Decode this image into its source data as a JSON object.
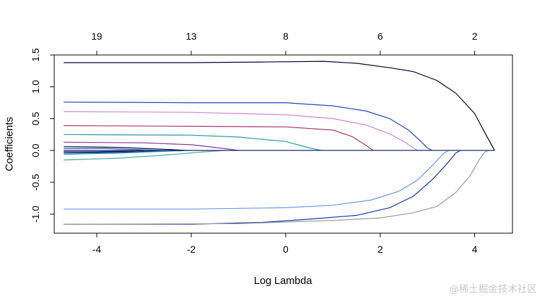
{
  "chart_data": {
    "type": "line",
    "xlabel": "Log Lambda",
    "ylabel": "Coefficients",
    "xlim": [
      -4.9,
      4.8
    ],
    "ylim": [
      -1.3,
      1.5
    ],
    "x_ticks": [
      -4,
      -2,
      0,
      2,
      4
    ],
    "x_tick_labels": [
      "-4",
      "-2",
      "0",
      "2",
      "4"
    ],
    "y_ticks": [
      -1.0,
      -0.5,
      0.0,
      0.5,
      1.0,
      1.5
    ],
    "y_tick_labels": [
      "-1.0",
      "-0.5",
      "0.0",
      "0.5",
      "1.0",
      "1.5"
    ],
    "top_axis": {
      "positions": [
        -4,
        -2,
        0,
        2,
        4
      ],
      "labels": [
        "19",
        "13",
        "8",
        "6",
        "2"
      ]
    },
    "grid": false,
    "series": [
      {
        "color": "#000033",
        "points": [
          [
            -4.7,
            1.38
          ],
          [
            -2,
            1.38
          ],
          [
            -0.5,
            1.39
          ],
          [
            0.8,
            1.4
          ],
          [
            1.5,
            1.37
          ],
          [
            2.2,
            1.3
          ],
          [
            2.7,
            1.24
          ],
          [
            3.2,
            1.1
          ],
          [
            3.6,
            0.9
          ],
          [
            4.0,
            0.58
          ],
          [
            4.2,
            0.3
          ],
          [
            4.42,
            0.0
          ]
        ]
      },
      {
        "color": "#2244bb",
        "points": [
          [
            -4.7,
            0.76
          ],
          [
            -2,
            0.75
          ],
          [
            0,
            0.75
          ],
          [
            1,
            0.7
          ],
          [
            1.7,
            0.62
          ],
          [
            2.2,
            0.5
          ],
          [
            2.6,
            0.32
          ],
          [
            2.85,
            0.15
          ],
          [
            3.0,
            0.04
          ],
          [
            3.1,
            0.0
          ]
        ]
      },
      {
        "color": "#cc88cc",
        "points": [
          [
            -4.7,
            0.61
          ],
          [
            -2,
            0.6
          ],
          [
            0,
            0.56
          ],
          [
            1,
            0.5
          ],
          [
            1.7,
            0.4
          ],
          [
            2.2,
            0.26
          ],
          [
            2.5,
            0.14
          ],
          [
            2.7,
            0.04
          ],
          [
            2.8,
            0.0
          ]
        ]
      },
      {
        "color": "#aa3366",
        "points": [
          [
            -4.7,
            0.39
          ],
          [
            -2,
            0.38
          ],
          [
            0,
            0.37
          ],
          [
            1,
            0.32
          ],
          [
            1.4,
            0.22
          ],
          [
            1.7,
            0.08
          ],
          [
            1.85,
            0.0
          ]
        ]
      },
      {
        "color": "#2299aa",
        "points": [
          [
            -4.7,
            0.25
          ],
          [
            -2,
            0.24
          ],
          [
            -1,
            0.21
          ],
          [
            0,
            0.14
          ],
          [
            0.5,
            0.04
          ],
          [
            0.75,
            0.0
          ]
        ]
      },
      {
        "color": "#883399",
        "points": [
          [
            -4.7,
            0.13
          ],
          [
            -3,
            0.12
          ],
          [
            -2,
            0.09
          ],
          [
            -1.3,
            0.03
          ],
          [
            -1.0,
            0.0
          ]
        ]
      },
      {
        "color": "#000055",
        "points": [
          [
            -4.7,
            0.06
          ],
          [
            -3.6,
            0.05
          ],
          [
            -2.6,
            0.02
          ],
          [
            -2.1,
            0.0
          ]
        ]
      },
      {
        "color": "#336699",
        "points": [
          [
            -4.7,
            0.03
          ],
          [
            -3.8,
            0.03
          ],
          [
            -3.0,
            0.01
          ],
          [
            -2.6,
            0.0
          ]
        ]
      },
      {
        "color": "#000088",
        "points": [
          [
            -4.7,
            -0.02
          ],
          [
            -4.0,
            -0.02
          ],
          [
            -3.4,
            -0.01
          ],
          [
            -3.0,
            0.0
          ]
        ]
      },
      {
        "color": "#113355",
        "points": [
          [
            -4.7,
            -0.04
          ],
          [
            -3.6,
            -0.03
          ],
          [
            -2.8,
            -0.01
          ],
          [
            -2.3,
            0.0
          ]
        ]
      },
      {
        "color": "#1188cc",
        "points": [
          [
            -4.7,
            -0.06
          ],
          [
            -3.5,
            -0.04
          ],
          [
            -2.5,
            -0.01
          ],
          [
            -2.0,
            0.0
          ]
        ]
      },
      {
        "color": "#44aa99",
        "points": [
          [
            -4.7,
            -0.15
          ],
          [
            -3.5,
            -0.12
          ],
          [
            -2.5,
            -0.07
          ],
          [
            -1.7,
            -0.02
          ],
          [
            -1.3,
            0.0
          ]
        ]
      },
      {
        "color": "#6699ee",
        "points": [
          [
            -4.7,
            -0.92
          ],
          [
            -2,
            -0.92
          ],
          [
            0,
            -0.9
          ],
          [
            1,
            -0.86
          ],
          [
            1.8,
            -0.78
          ],
          [
            2.4,
            -0.64
          ],
          [
            2.8,
            -0.46
          ],
          [
            3.1,
            -0.24
          ],
          [
            3.35,
            -0.04
          ],
          [
            3.45,
            0.0
          ]
        ]
      },
      {
        "color": "#1133aa",
        "points": [
          [
            -4.7,
            -1.16
          ],
          [
            -2,
            -1.16
          ],
          [
            -0.5,
            -1.13
          ],
          [
            0.5,
            -1.08
          ],
          [
            1.5,
            -1.02
          ],
          [
            2.2,
            -0.9
          ],
          [
            2.7,
            -0.72
          ],
          [
            3.1,
            -0.46
          ],
          [
            3.4,
            -0.22
          ],
          [
            3.6,
            -0.04
          ],
          [
            3.7,
            0.0
          ]
        ]
      },
      {
        "color": "#999999",
        "points": [
          [
            -4.7,
            -1.16
          ],
          [
            -1,
            -1.15
          ],
          [
            1,
            -1.1
          ],
          [
            2,
            -1.06
          ],
          [
            2.7,
            -0.98
          ],
          [
            3.2,
            -0.88
          ],
          [
            3.6,
            -0.66
          ],
          [
            3.9,
            -0.4
          ],
          [
            4.1,
            -0.14
          ],
          [
            4.22,
            -0.02
          ],
          [
            4.3,
            0.0
          ]
        ]
      },
      {
        "color": "#1a2a6a",
        "points": [
          [
            -4.7,
            0.0
          ],
          [
            4.42,
            0.0
          ]
        ]
      }
    ]
  },
  "watermark": "@稀土掘金技术社区"
}
